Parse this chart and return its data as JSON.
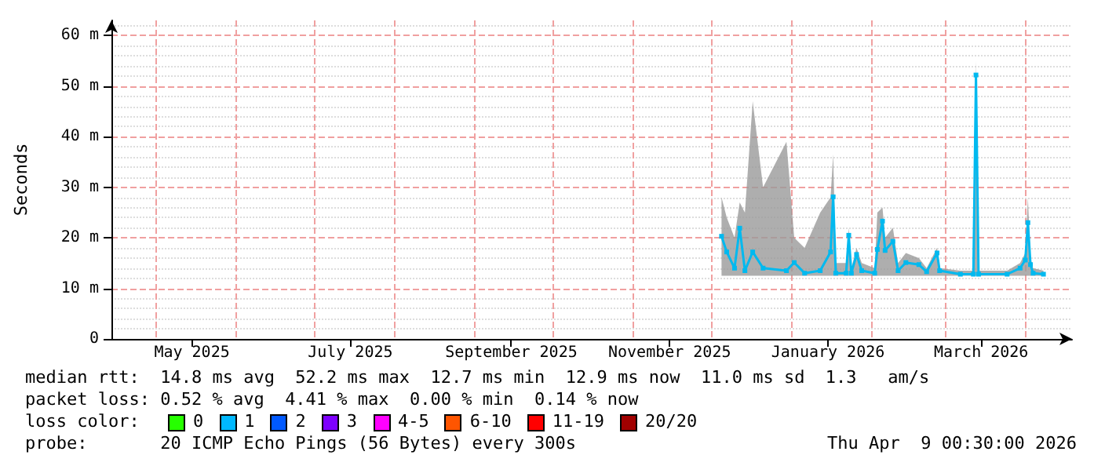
{
  "chart_data": {
    "type": "line",
    "ylabel": "Seconds",
    "x": [
      "2025-12-05",
      "2025-12-07",
      "2025-12-10",
      "2025-12-12",
      "2025-12-14",
      "2025-12-17",
      "2025-12-21",
      "2025-12-30",
      "2026-01-02",
      "2026-01-06",
      "2026-01-12",
      "2026-01-16",
      "2026-01-17",
      "2026-01-18",
      "2026-01-22",
      "2026-01-23",
      "2026-01-24",
      "2026-01-26",
      "2026-01-28",
      "2026-02-02",
      "2026-02-03",
      "2026-02-05",
      "2026-02-06",
      "2026-02-09",
      "2026-02-11",
      "2026-02-14",
      "2026-02-19",
      "2026-02-22",
      "2026-02-26",
      "2026-02-27",
      "2026-03-07",
      "2026-03-12",
      "2026-03-13",
      "2026-03-14",
      "2026-03-25",
      "2026-03-30",
      "2026-04-01",
      "2026-04-02",
      "2026-04-03",
      "2026-04-04",
      "2026-04-08"
    ],
    "series": [
      {
        "color": "#00b9ef",
        "values": [
          20.3,
          17.2,
          14,
          21.9,
          13.5,
          17.2,
          14,
          13.5,
          15.1,
          13,
          13.5,
          17.2,
          28.1,
          13,
          13,
          20.5,
          13,
          16.7,
          13.5,
          13,
          17.7,
          23.3,
          17.5,
          19.3,
          13.5,
          15.1,
          14.7,
          13.3,
          17,
          13.5,
          12.8,
          12.8,
          52.2,
          12.8,
          12.8,
          14,
          15.6,
          23,
          14.7,
          13,
          12.8
        ],
        "lower": [
          12.5,
          12.5,
          12.5,
          12.5,
          12.5,
          12.5,
          12.5,
          12.5,
          12.5,
          12.5,
          12.5,
          12.5,
          12.5,
          12.5,
          12.5,
          12.5,
          12.5,
          12.5,
          12.5,
          12.5,
          12.5,
          12.5,
          12.5,
          12.5,
          12.5,
          12.5,
          12.5,
          12.5,
          12.5,
          12.5,
          12.5,
          12.5,
          12.5,
          12.5,
          12.5,
          12.5,
          12.5,
          12.5,
          12.5,
          12.5,
          12.5
        ],
        "upper": [
          28,
          24,
          20,
          27,
          25,
          47,
          30,
          39,
          20,
          18,
          25,
          28,
          36.5,
          15,
          15,
          22,
          14,
          18,
          15,
          14,
          25,
          26,
          20,
          22,
          15,
          17,
          16,
          14,
          18,
          14,
          13.5,
          13.5,
          55,
          13.5,
          13.5,
          15,
          17,
          28,
          16,
          14,
          13.5
        ]
      }
    ],
    "xlim": [
      "2025-04-14",
      "2026-04-19"
    ],
    "xticks": [
      {
        "value": "2025-05-01",
        "label": null
      },
      {
        "value": "2025-05-15",
        "label": "May 2025"
      },
      {
        "value": "2025-06-01",
        "label": null
      },
      {
        "value": "2025-07-01",
        "label": null
      },
      {
        "value": "2025-07-15",
        "label": "July 2025"
      },
      {
        "value": "2025-08-01",
        "label": null
      },
      {
        "value": "2025-09-01",
        "label": null
      },
      {
        "value": "2025-09-15",
        "label": "September 2025"
      },
      {
        "value": "2025-10-01",
        "label": null
      },
      {
        "value": "2025-11-01",
        "label": null
      },
      {
        "value": "2025-11-15",
        "label": "November 2025"
      },
      {
        "value": "2025-12-01",
        "label": null
      },
      {
        "value": "2026-01-01",
        "label": null
      },
      {
        "value": "2026-01-15",
        "label": "January 2026"
      },
      {
        "value": "2026-02-01",
        "label": null
      },
      {
        "value": "2026-03-01",
        "label": null
      },
      {
        "value": "2026-03-15",
        "label": "March 2026"
      },
      {
        "value": "2026-04-01",
        "label": null
      }
    ],
    "ylim": [
      0,
      63
    ],
    "yticks": [
      0,
      {
        "value": 10,
        "label": "10 m"
      },
      {
        "value": 20,
        "label": "20 m"
      },
      {
        "value": 30,
        "label": "30 m"
      },
      {
        "value": 40,
        "label": "40 m"
      },
      {
        "value": 50,
        "label": "50 m"
      },
      {
        "value": 60,
        "label": "60 m"
      }
    ],
    "grid": true,
    "marker": "square",
    "line_style": "solid",
    "annotations": [
      "median rtt:  14.8 ms avg  52.2 ms max  12.7 ms min  12.9 ms now  11.0 ms sd  1.3   am/s",
      "packet loss: 0.52 % avg  4.41 % max  0.00 % min  0.14 % now",
      "loss color:",
      "0",
      "1",
      "2",
      "3",
      "4-5",
      "6-10",
      "11-19",
      "20/20",
      "probe:       20 ICMP Echo Pings (56 Bytes) every 300s",
      "Thu Apr  9 00:30:00 2026"
    ]
  }
}
